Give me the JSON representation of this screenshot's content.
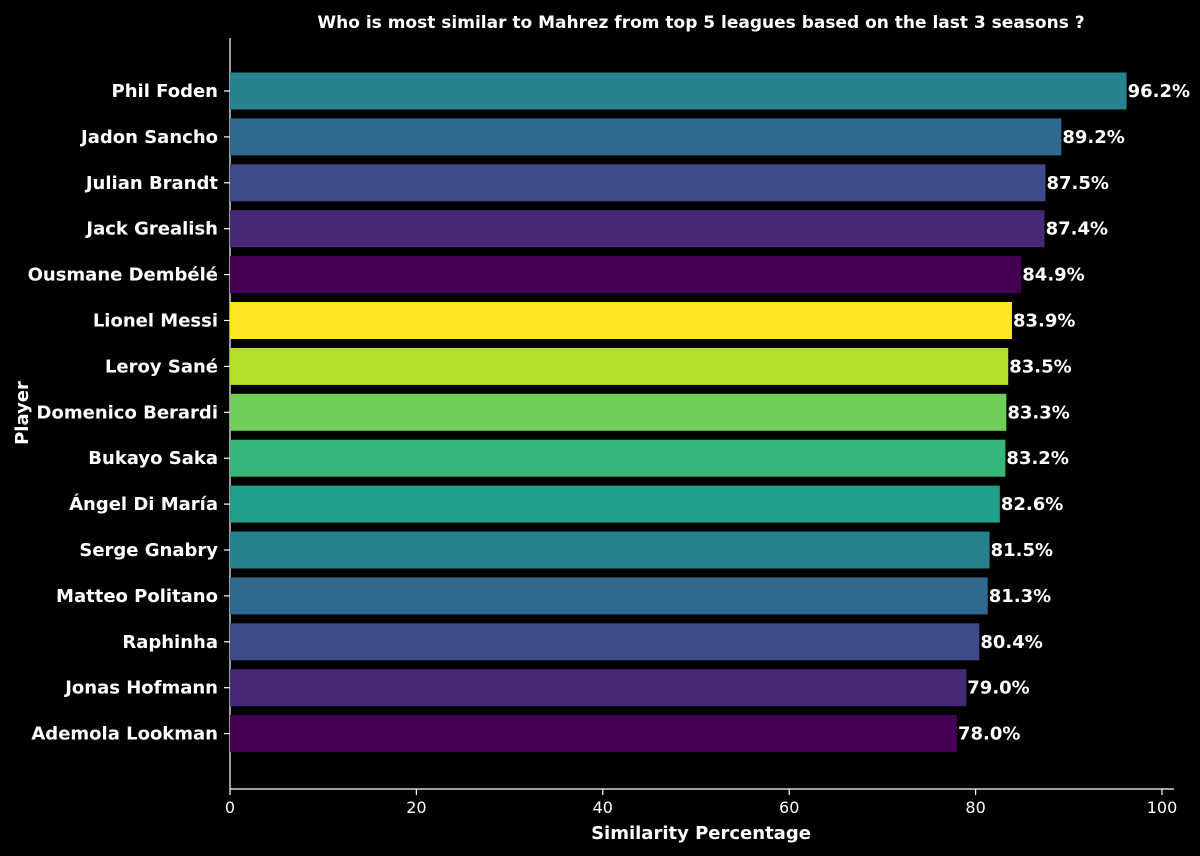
{
  "chart_data": {
    "type": "bar",
    "orientation": "horizontal",
    "title": "Who is most similar to Mahrez from top 5 leagues based on the last 3 seasons ?",
    "xlabel": "Similarity Percentage",
    "ylabel": "Player",
    "xlim": [
      0,
      100
    ],
    "xticks": [
      0,
      20,
      40,
      60,
      80,
      100
    ],
    "grid": false,
    "categories": [
      "Phil Foden",
      "Jadon Sancho",
      "Julian Brandt",
      "Jack Grealish",
      "Ousmane Dembélé",
      "Lionel Messi",
      "Leroy Sané",
      "Domenico Berardi",
      "Bukayo Saka",
      "Ángel Di María",
      "Serge Gnabry",
      "Matteo Politano",
      "Raphinha",
      "Jonas Hofmann",
      "Ademola Lookman"
    ],
    "values": [
      96.2,
      89.2,
      87.5,
      87.4,
      84.9,
      83.9,
      83.5,
      83.3,
      83.2,
      82.6,
      81.5,
      81.3,
      80.4,
      79.0,
      78.0
    ],
    "value_labels": [
      "96.2%",
      "89.2%",
      "87.5%",
      "87.4%",
      "84.9%",
      "83.9%",
      "83.5%",
      "83.3%",
      "83.2%",
      "82.6%",
      "81.5%",
      "81.3%",
      "80.4%",
      "79.0%",
      "78.0%"
    ],
    "colors": [
      "#26828e",
      "#31688e",
      "#3e4a89",
      "#482878",
      "#440154",
      "#fde725",
      "#b5de2b",
      "#6ece58",
      "#35b779",
      "#1f9e89",
      "#26828e",
      "#31688e",
      "#3e4a89",
      "#482878",
      "#440154"
    ],
    "background": "#000000"
  }
}
